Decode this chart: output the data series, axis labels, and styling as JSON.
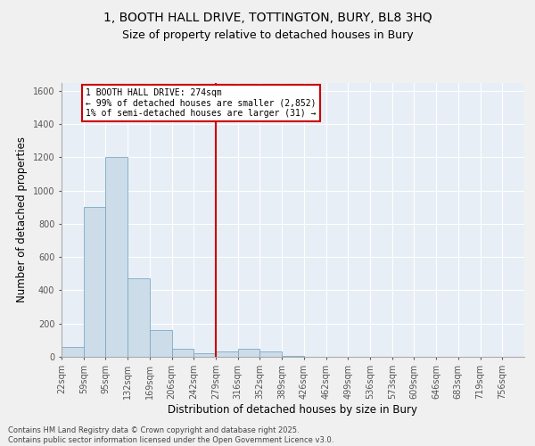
{
  "title_line1": "1, BOOTH HALL DRIVE, TOTTINGTON, BURY, BL8 3HQ",
  "title_line2": "Size of property relative to detached houses in Bury",
  "xlabel": "Distribution of detached houses by size in Bury",
  "ylabel": "Number of detached properties",
  "bar_color": "#ccdce8",
  "bar_edge_color": "#7aaac8",
  "plot_bg_color": "#e8eef6",
  "fig_bg_color": "#f0f0f0",
  "grid_color": "#ffffff",
  "vline_x_index": 7,
  "vline_color": "#cc0000",
  "annotation_text": "1 BOOTH HALL DRIVE: 274sqm\n← 99% of detached houses are smaller (2,852)\n1% of semi-detached houses are larger (31) →",
  "annotation_box_color": "#cc0000",
  "categories": [
    "22sqm",
    "59sqm",
    "95sqm",
    "132sqm",
    "169sqm",
    "206sqm",
    "242sqm",
    "279sqm",
    "316sqm",
    "352sqm",
    "389sqm",
    "426sqm",
    "462sqm",
    "499sqm",
    "536sqm",
    "573sqm",
    "609sqm",
    "646sqm",
    "683sqm",
    "719sqm",
    "756sqm"
  ],
  "values": [
    60,
    900,
    1200,
    470,
    160,
    50,
    20,
    30,
    50,
    30,
    5,
    2,
    1,
    1,
    0,
    0,
    0,
    0,
    0,
    0,
    0
  ],
  "ylim": [
    0,
    1650
  ],
  "yticks": [
    0,
    200,
    400,
    600,
    800,
    1000,
    1200,
    1400,
    1600
  ],
  "footer_text": "Contains HM Land Registry data © Crown copyright and database right 2025.\nContains public sector information licensed under the Open Government Licence v3.0.",
  "title_fontsize": 10,
  "subtitle_fontsize": 9,
  "tick_fontsize": 7,
  "label_fontsize": 8.5,
  "footer_fontsize": 6
}
